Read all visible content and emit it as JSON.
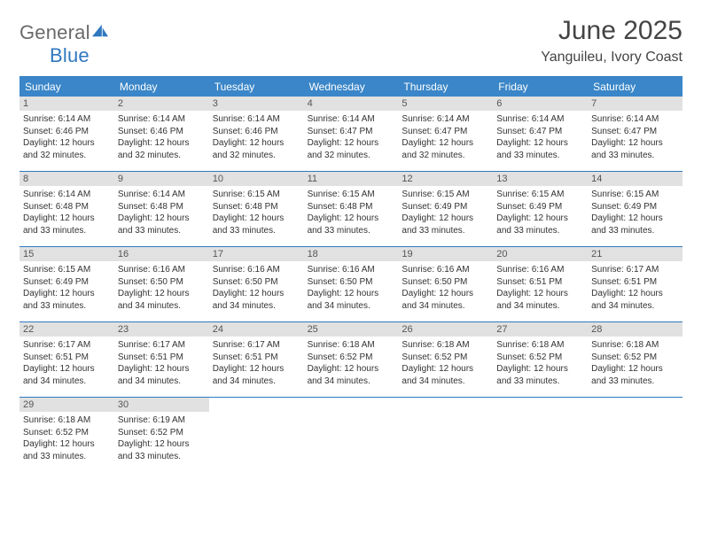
{
  "logo": {
    "text_left": "General",
    "text_right": "Blue"
  },
  "title": "June 2025",
  "location": "Yanguileu, Ivory Coast",
  "colors": {
    "header_bg": "#3a86c8",
    "header_text": "#ffffff",
    "rule": "#2f78bf",
    "daynum_bg": "#e1e1e1",
    "body_text": "#333333",
    "logo_gray": "#6a6a6a",
    "logo_blue": "#2f78bf"
  },
  "weekdays": [
    "Sunday",
    "Monday",
    "Tuesday",
    "Wednesday",
    "Thursday",
    "Friday",
    "Saturday"
  ],
  "weeks": [
    [
      {
        "n": "1",
        "sr": "Sunrise: 6:14 AM",
        "ss": "Sunset: 6:46 PM",
        "dl": "Daylight: 12 hours and 32 minutes."
      },
      {
        "n": "2",
        "sr": "Sunrise: 6:14 AM",
        "ss": "Sunset: 6:46 PM",
        "dl": "Daylight: 12 hours and 32 minutes."
      },
      {
        "n": "3",
        "sr": "Sunrise: 6:14 AM",
        "ss": "Sunset: 6:46 PM",
        "dl": "Daylight: 12 hours and 32 minutes."
      },
      {
        "n": "4",
        "sr": "Sunrise: 6:14 AM",
        "ss": "Sunset: 6:47 PM",
        "dl": "Daylight: 12 hours and 32 minutes."
      },
      {
        "n": "5",
        "sr": "Sunrise: 6:14 AM",
        "ss": "Sunset: 6:47 PM",
        "dl": "Daylight: 12 hours and 32 minutes."
      },
      {
        "n": "6",
        "sr": "Sunrise: 6:14 AM",
        "ss": "Sunset: 6:47 PM",
        "dl": "Daylight: 12 hours and 33 minutes."
      },
      {
        "n": "7",
        "sr": "Sunrise: 6:14 AM",
        "ss": "Sunset: 6:47 PM",
        "dl": "Daylight: 12 hours and 33 minutes."
      }
    ],
    [
      {
        "n": "8",
        "sr": "Sunrise: 6:14 AM",
        "ss": "Sunset: 6:48 PM",
        "dl": "Daylight: 12 hours and 33 minutes."
      },
      {
        "n": "9",
        "sr": "Sunrise: 6:14 AM",
        "ss": "Sunset: 6:48 PM",
        "dl": "Daylight: 12 hours and 33 minutes."
      },
      {
        "n": "10",
        "sr": "Sunrise: 6:15 AM",
        "ss": "Sunset: 6:48 PM",
        "dl": "Daylight: 12 hours and 33 minutes."
      },
      {
        "n": "11",
        "sr": "Sunrise: 6:15 AM",
        "ss": "Sunset: 6:48 PM",
        "dl": "Daylight: 12 hours and 33 minutes."
      },
      {
        "n": "12",
        "sr": "Sunrise: 6:15 AM",
        "ss": "Sunset: 6:49 PM",
        "dl": "Daylight: 12 hours and 33 minutes."
      },
      {
        "n": "13",
        "sr": "Sunrise: 6:15 AM",
        "ss": "Sunset: 6:49 PM",
        "dl": "Daylight: 12 hours and 33 minutes."
      },
      {
        "n": "14",
        "sr": "Sunrise: 6:15 AM",
        "ss": "Sunset: 6:49 PM",
        "dl": "Daylight: 12 hours and 33 minutes."
      }
    ],
    [
      {
        "n": "15",
        "sr": "Sunrise: 6:15 AM",
        "ss": "Sunset: 6:49 PM",
        "dl": "Daylight: 12 hours and 33 minutes."
      },
      {
        "n": "16",
        "sr": "Sunrise: 6:16 AM",
        "ss": "Sunset: 6:50 PM",
        "dl": "Daylight: 12 hours and 34 minutes."
      },
      {
        "n": "17",
        "sr": "Sunrise: 6:16 AM",
        "ss": "Sunset: 6:50 PM",
        "dl": "Daylight: 12 hours and 34 minutes."
      },
      {
        "n": "18",
        "sr": "Sunrise: 6:16 AM",
        "ss": "Sunset: 6:50 PM",
        "dl": "Daylight: 12 hours and 34 minutes."
      },
      {
        "n": "19",
        "sr": "Sunrise: 6:16 AM",
        "ss": "Sunset: 6:50 PM",
        "dl": "Daylight: 12 hours and 34 minutes."
      },
      {
        "n": "20",
        "sr": "Sunrise: 6:16 AM",
        "ss": "Sunset: 6:51 PM",
        "dl": "Daylight: 12 hours and 34 minutes."
      },
      {
        "n": "21",
        "sr": "Sunrise: 6:17 AM",
        "ss": "Sunset: 6:51 PM",
        "dl": "Daylight: 12 hours and 34 minutes."
      }
    ],
    [
      {
        "n": "22",
        "sr": "Sunrise: 6:17 AM",
        "ss": "Sunset: 6:51 PM",
        "dl": "Daylight: 12 hours and 34 minutes."
      },
      {
        "n": "23",
        "sr": "Sunrise: 6:17 AM",
        "ss": "Sunset: 6:51 PM",
        "dl": "Daylight: 12 hours and 34 minutes."
      },
      {
        "n": "24",
        "sr": "Sunrise: 6:17 AM",
        "ss": "Sunset: 6:51 PM",
        "dl": "Daylight: 12 hours and 34 minutes."
      },
      {
        "n": "25",
        "sr": "Sunrise: 6:18 AM",
        "ss": "Sunset: 6:52 PM",
        "dl": "Daylight: 12 hours and 34 minutes."
      },
      {
        "n": "26",
        "sr": "Sunrise: 6:18 AM",
        "ss": "Sunset: 6:52 PM",
        "dl": "Daylight: 12 hours and 34 minutes."
      },
      {
        "n": "27",
        "sr": "Sunrise: 6:18 AM",
        "ss": "Sunset: 6:52 PM",
        "dl": "Daylight: 12 hours and 33 minutes."
      },
      {
        "n": "28",
        "sr": "Sunrise: 6:18 AM",
        "ss": "Sunset: 6:52 PM",
        "dl": "Daylight: 12 hours and 33 minutes."
      }
    ],
    [
      {
        "n": "29",
        "sr": "Sunrise: 6:18 AM",
        "ss": "Sunset: 6:52 PM",
        "dl": "Daylight: 12 hours and 33 minutes."
      },
      {
        "n": "30",
        "sr": "Sunrise: 6:19 AM",
        "ss": "Sunset: 6:52 PM",
        "dl": "Daylight: 12 hours and 33 minutes."
      },
      null,
      null,
      null,
      null,
      null
    ]
  ]
}
